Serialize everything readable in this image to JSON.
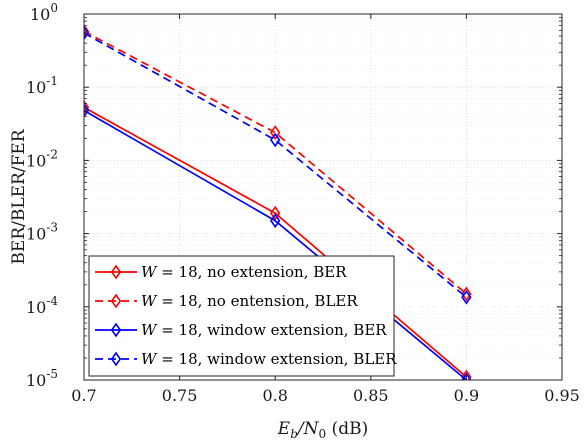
{
  "chart_data": {
    "type": "line",
    "xlabel": "E_b/N_0 (dB)",
    "xlabel_parts": {
      "main": "E",
      "sub1": "b",
      "slash": "/N",
      "sub2": "0",
      "unit": " (dB)"
    },
    "ylabel": "BER/BLER/FER",
    "xlim": [
      0.7,
      0.95
    ],
    "ylim": [
      1e-05,
      1
    ],
    "yscale": "log",
    "grid": true,
    "legend_position": "bottom-left",
    "x_ticks": [
      "0.7",
      "0.75",
      "0.8",
      "0.85",
      "0.9",
      "0.95"
    ],
    "x_tick_values": [
      0.7,
      0.75,
      0.8,
      0.85,
      0.9,
      0.95
    ],
    "y_ticks": [
      {
        "base": "10",
        "exp": "0",
        "value": 1
      },
      {
        "base": "10",
        "exp": "-1",
        "value": 0.1
      },
      {
        "base": "10",
        "exp": "-2",
        "value": 0.01
      },
      {
        "base": "10",
        "exp": "-3",
        "value": 0.001
      },
      {
        "base": "10",
        "exp": "-4",
        "value": 0.0001
      },
      {
        "base": "10",
        "exp": "-5",
        "value": 1e-05
      }
    ],
    "series": [
      {
        "name": "W = 18, no extension, BER",
        "legend_var": "W",
        "legend_rest": " = 18, no extension, BER",
        "color": "#ff0000",
        "dash": "solid",
        "marker": "diamond",
        "x": [
          0.7,
          0.8,
          0.9
        ],
        "y": [
          0.053,
          0.0019,
          1.1e-05
        ]
      },
      {
        "name": "W = 18, no entension, BLER",
        "legend_var": "W",
        "legend_rest": " = 18, no entension, BLER",
        "color": "#ff0000",
        "dash": "dashed",
        "marker": "diamond",
        "x": [
          0.7,
          0.8,
          0.9
        ],
        "y": [
          0.58,
          0.024,
          0.00015
        ]
      },
      {
        "name": "W = 18, window extension, BER",
        "legend_var": "W",
        "legend_rest": " = 18, window extension, BER",
        "color": "#0000ff",
        "dash": "solid",
        "marker": "diamond",
        "x": [
          0.7,
          0.8,
          0.9
        ],
        "y": [
          0.048,
          0.0015,
          1e-05
        ]
      },
      {
        "name": "W = 18, window extension, BLER",
        "legend_var": "W",
        "legend_rest": " = 18, window extension, BLER",
        "color": "#0000ff",
        "dash": "dashed",
        "marker": "diamond",
        "x": [
          0.7,
          0.8,
          0.9
        ],
        "y": [
          0.55,
          0.019,
          0.000135
        ]
      }
    ]
  }
}
